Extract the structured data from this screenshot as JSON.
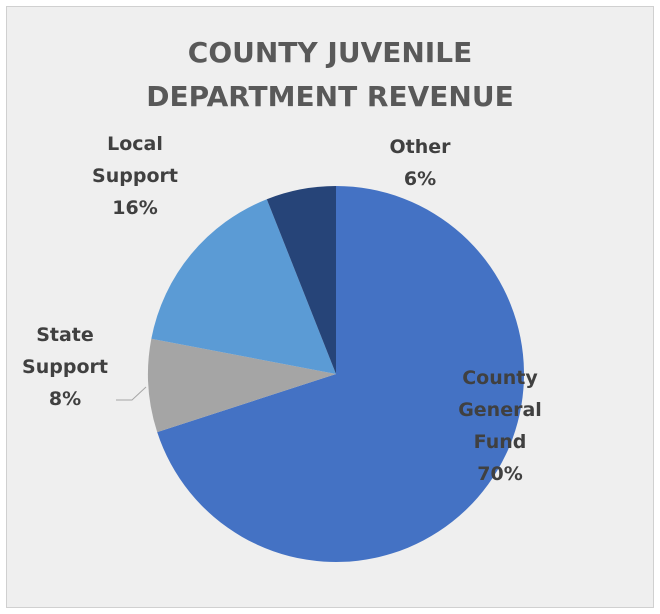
{
  "chart_data": {
    "type": "pie",
    "title_lines": [
      "COUNTY JUVENILE",
      "DEPARTMENT REVENUE"
    ],
    "slices": [
      {
        "label_lines": [
          "County",
          "General",
          "Fund"
        ],
        "pct_label": "70%",
        "value": 70,
        "color": "#4472c4"
      },
      {
        "label_lines": [
          "State",
          "Support"
        ],
        "pct_label": "8%",
        "value": 8,
        "color": "#a5a5a5"
      },
      {
        "label_lines": [
          "Local",
          "Support"
        ],
        "pct_label": "16%",
        "value": 16,
        "color": "#5b9bd5"
      },
      {
        "label_lines": [
          "Other"
        ],
        "pct_label": "6%",
        "value": 6,
        "color": "#264478"
      }
    ],
    "legend": "none"
  }
}
